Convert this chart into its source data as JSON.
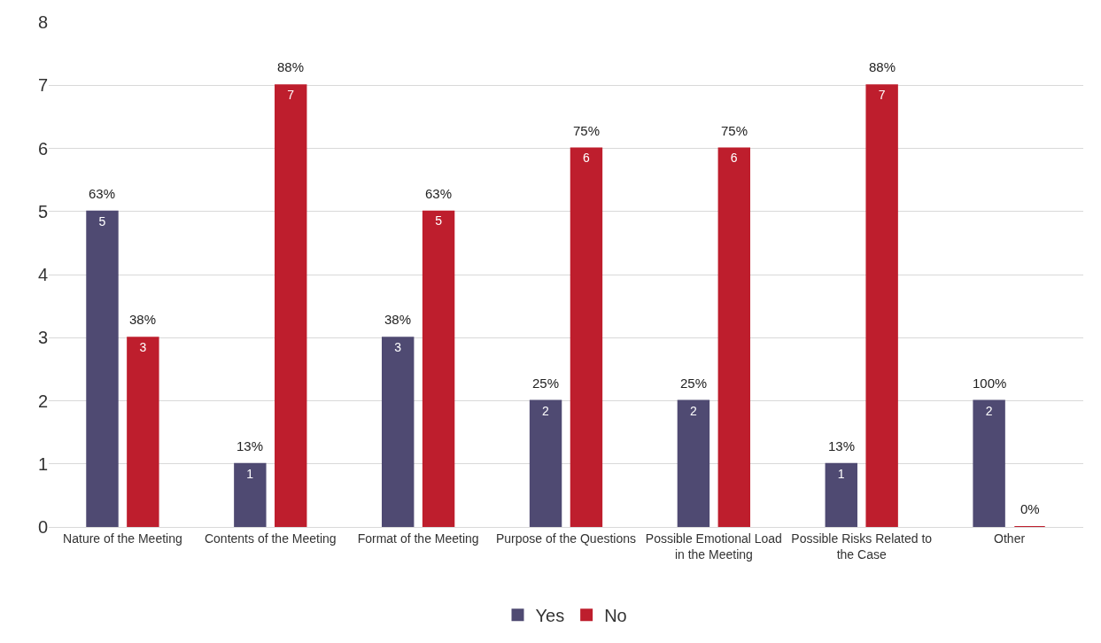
{
  "chart_data": {
    "type": "bar",
    "categories": [
      "Nature of the Meeting",
      "Contents of the Meeting",
      "Format of the Meeting",
      "Purpose of the Questions",
      "Possible Emotional Load in the Meeting",
      "Possible Risks Related to the Case",
      "Other"
    ],
    "series": [
      {
        "name": "Yes",
        "color": "#4f4a72",
        "values": [
          5,
          1,
          3,
          2,
          2,
          1,
          2
        ],
        "value_labels": [
          "5",
          "1",
          "3",
          "2",
          "2",
          "1",
          "2"
        ]
      },
      {
        "name": "No",
        "color": "#be1e2d",
        "values": [
          3,
          7,
          5,
          6,
          6,
          7,
          0
        ],
        "value_labels": [
          "3",
          "7",
          "5",
          "6",
          "6",
          "7",
          null
        ]
      }
    ],
    "annotations": [
      "63%",
      "13%",
      "38%",
      "25%",
      "25%",
      "13%",
      "100%",
      "38%",
      "88%",
      "63%",
      "75%",
      "75%",
      "88%",
      "0%"
    ],
    "ylim": [
      0,
      8
    ],
    "yticks": [
      0,
      1,
      2,
      3,
      4,
      5,
      6,
      7,
      8
    ],
    "grid": "y",
    "legend": "bottom"
  }
}
